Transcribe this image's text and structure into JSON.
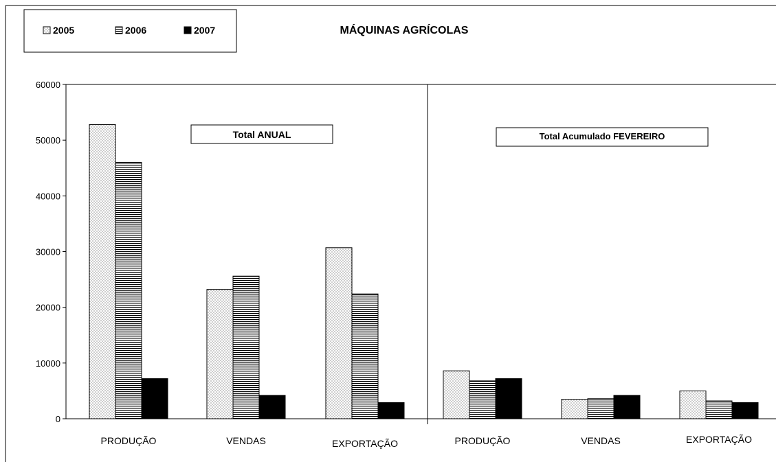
{
  "chart_data": {
    "type": "bar",
    "title": "MÁQUINAS AGRÍCOLAS",
    "legend": {
      "position": "top-left",
      "entries": [
        "2005",
        "2006",
        "2007"
      ]
    },
    "y_ticks": [
      "0",
      "10000",
      "20000",
      "30000",
      "40000",
      "50000",
      "60000"
    ],
    "ylim": [
      0,
      60000
    ],
    "grid": false,
    "series": [
      {
        "name": "2005",
        "pattern": "dotted"
      },
      {
        "name": "2006",
        "pattern": "horizontal-stripes"
      },
      {
        "name": "2007",
        "pattern": "solid-black"
      }
    ],
    "panels": [
      {
        "label": "Total ANUAL",
        "categories": [
          "PRODUÇÃO",
          "VENDAS",
          "EXPORTAÇÃO"
        ],
        "values": [
          [
            52800,
            46000,
            7200
          ],
          [
            23200,
            25600,
            4200
          ],
          [
            30700,
            22400,
            2900
          ]
        ]
      },
      {
        "label": "Total Acumulado FEVEREIRO",
        "categories": [
          "PRODUÇÃO",
          "VENDAS",
          "EXPORTAÇÃO"
        ],
        "values": [
          [
            8600,
            6800,
            7200
          ],
          [
            3500,
            3600,
            4200
          ],
          [
            5000,
            3200,
            2900
          ]
        ]
      }
    ]
  }
}
